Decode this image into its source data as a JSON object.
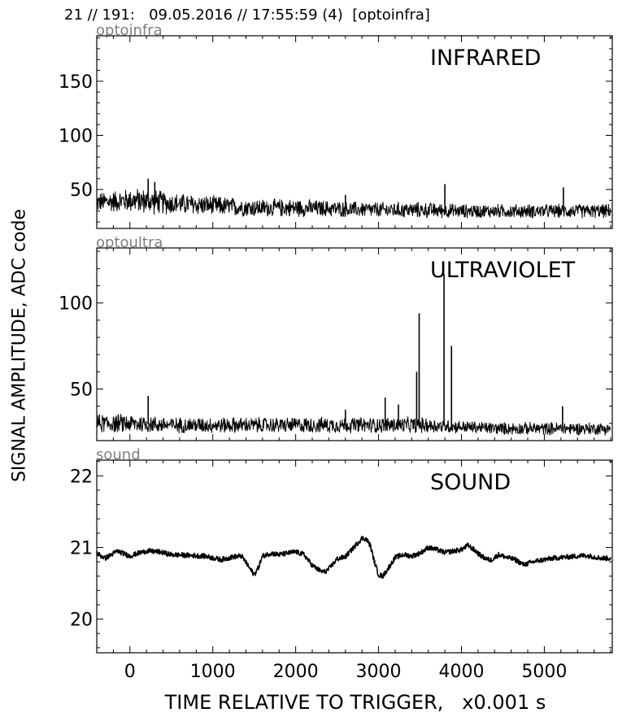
{
  "header": "21 // 191:   09.05.2016 // 17:55:59 (4)  [optoinfra]",
  "ylabel": "SIGNAL AMPLITUDE,  ADC code",
  "xlabel": "TIME RELATIVE TO TRIGGER,   x0.001 s",
  "chart_data": [
    {
      "type": "line",
      "channel": "optoinfra",
      "title": "INFRARED",
      "xlim": [
        -400,
        5820
      ],
      "ylim": [
        14,
        192
      ],
      "yticks": [
        50,
        100,
        150
      ],
      "xticks": [
        0,
        1000,
        2000,
        3000,
        4000,
        5000
      ],
      "series": [
        {
          "x": [
            -400,
            0,
            250,
            500,
            1000,
            1500,
            2000,
            2500,
            3000,
            3500,
            4000,
            4500,
            5000,
            5500,
            5800
          ],
          "y": [
            38,
            40,
            39,
            37,
            35,
            33,
            33,
            32,
            31,
            31,
            30,
            30,
            30,
            30,
            30
          ],
          "spread": [
            10,
            12,
            13,
            11,
            10,
            9,
            9,
            8,
            8,
            8,
            7,
            7,
            7,
            7,
            7
          ]
        }
      ],
      "peaks": [
        [
          220,
          60
        ],
        [
          300,
          57
        ],
        [
          3800,
          55
        ],
        [
          5230,
          52
        ],
        [
          2600,
          45
        ]
      ]
    },
    {
      "type": "line",
      "channel": "optoultra",
      "title": "ULTRAVIOLET",
      "xlim": [
        -400,
        5820
      ],
      "ylim": [
        20,
        132
      ],
      "yticks": [
        50,
        100
      ],
      "xticks": [
        0,
        1000,
        2000,
        3000,
        4000,
        5000
      ],
      "series": [
        {
          "x": [
            -400,
            0,
            500,
            1000,
            1500,
            2000,
            2500,
            3000,
            3500,
            4000,
            4500,
            5000,
            5500,
            5800
          ],
          "y": [
            30,
            30,
            29,
            29,
            29,
            29,
            29,
            29,
            29,
            28,
            27,
            27,
            27,
            27
          ],
          "spread": [
            6,
            6,
            5,
            5,
            5,
            5,
            5,
            5,
            5,
            4,
            4,
            4,
            4,
            4
          ]
        }
      ],
      "peaks": [
        [
          220,
          46
        ],
        [
          3080,
          45
        ],
        [
          3240,
          41
        ],
        [
          3460,
          60
        ],
        [
          3490,
          94
        ],
        [
          3790,
          117
        ],
        [
          3880,
          75
        ],
        [
          5220,
          40
        ],
        [
          2600,
          38
        ]
      ]
    },
    {
      "type": "line",
      "channel": "sound",
      "title": "SOUND",
      "xlim": [
        -400,
        5820
      ],
      "ylim": [
        19.53,
        22.22
      ],
      "yticks": [
        20,
        21,
        22
      ],
      "xticks": [
        0,
        1000,
        2000,
        3000,
        4000,
        5000
      ],
      "series": [
        {
          "x": [
            -400,
            -300,
            -150,
            0,
            100,
            200,
            350,
            500,
            700,
            900,
            1100,
            1250,
            1350,
            1450,
            1500,
            1550,
            1600,
            1700,
            1800,
            1900,
            2000,
            2100,
            2200,
            2300,
            2350,
            2400,
            2500,
            2600,
            2700,
            2800,
            2850,
            2900,
            2950,
            3000,
            3050,
            3100,
            3200,
            3300,
            3400,
            3500,
            3600,
            3700,
            3800,
            3900,
            4000,
            4080,
            4150,
            4250,
            4350,
            4450,
            4550,
            4650,
            4750,
            4900,
            5100,
            5300,
            5500,
            5700,
            5800
          ],
          "y": [
            20.92,
            20.85,
            20.95,
            20.88,
            20.92,
            20.95,
            20.94,
            20.9,
            20.89,
            20.88,
            20.83,
            20.87,
            20.88,
            20.7,
            20.62,
            20.72,
            20.88,
            20.92,
            20.9,
            20.92,
            20.94,
            20.9,
            20.75,
            20.67,
            20.66,
            20.7,
            20.84,
            20.87,
            21.0,
            21.13,
            21.12,
            21.03,
            20.8,
            20.62,
            20.6,
            20.68,
            20.86,
            20.9,
            20.88,
            20.92,
            21.0,
            20.97,
            20.93,
            20.95,
            20.97,
            21.03,
            20.97,
            20.87,
            20.82,
            20.9,
            20.86,
            20.83,
            20.76,
            20.81,
            20.85,
            20.87,
            20.89,
            20.85,
            20.85
          ]
        }
      ]
    }
  ]
}
